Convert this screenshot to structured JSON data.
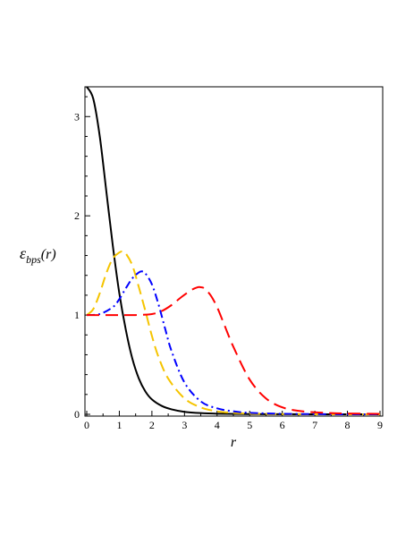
{
  "chart_data": {
    "type": "line",
    "xlabel": "r",
    "ylabel_main": "ε",
    "ylabel_sub": "bps",
    "ylabel_arg": "(r)",
    "xlim": [
      0,
      9
    ],
    "ylim": [
      0,
      3.3
    ],
    "xticks": [
      "0",
      "1",
      "2",
      "3",
      "4",
      "5",
      "6",
      "7",
      "8",
      "9"
    ],
    "yticks": [
      "0",
      "1",
      "2",
      "3"
    ],
    "grid": false,
    "series": [
      {
        "color": "#000000",
        "style": "solid",
        "x": [
          0,
          0.2,
          0.4,
          0.6,
          0.8,
          1.0,
          1.2,
          1.4,
          1.6,
          1.8,
          2.0,
          2.3,
          2.6,
          3.0,
          3.5,
          4.0,
          5.0,
          6.0,
          7.0,
          8.0,
          9.0
        ],
        "y": [
          3.3,
          3.18,
          2.8,
          2.25,
          1.7,
          1.22,
          0.85,
          0.56,
          0.36,
          0.23,
          0.15,
          0.085,
          0.05,
          0.025,
          0.012,
          0.006,
          0.002,
          0.001,
          0.0,
          0.0,
          0.0
        ]
      },
      {
        "color": "#f5c400",
        "style": "dash",
        "x": [
          0,
          0.2,
          0.4,
          0.6,
          0.8,
          1.0,
          1.1,
          1.2,
          1.4,
          1.6,
          1.8,
          2.0,
          2.2,
          2.5,
          3.0,
          3.5,
          4.0,
          4.5,
          5.0,
          6.0,
          7.0,
          8.0,
          9.0
        ],
        "y": [
          1.0,
          1.06,
          1.22,
          1.42,
          1.57,
          1.63,
          1.64,
          1.62,
          1.5,
          1.28,
          1.04,
          0.79,
          0.58,
          0.36,
          0.16,
          0.07,
          0.03,
          0.015,
          0.007,
          0.002,
          0.0,
          0.0,
          0.0
        ]
      },
      {
        "color": "#0000ff",
        "style": "dashdot",
        "x": [
          0,
          0.4,
          0.8,
          1.0,
          1.2,
          1.4,
          1.6,
          1.7,
          1.8,
          2.0,
          2.2,
          2.4,
          2.6,
          3.0,
          3.5,
          4.0,
          4.5,
          5.0,
          6.0,
          7.0,
          8.0,
          9.0
        ],
        "y": [
          1.0,
          1.01,
          1.08,
          1.16,
          1.27,
          1.37,
          1.43,
          1.44,
          1.42,
          1.31,
          1.11,
          0.87,
          0.64,
          0.32,
          0.13,
          0.06,
          0.03,
          0.015,
          0.005,
          0.002,
          0.0,
          0.0
        ]
      },
      {
        "color": "#ff0000",
        "style": "longdash",
        "x": [
          0,
          0.5,
          1.0,
          1.5,
          2.0,
          2.3,
          2.6,
          2.9,
          3.2,
          3.4,
          3.5,
          3.6,
          3.8,
          4.0,
          4.2,
          4.5,
          5.0,
          5.5,
          6.0,
          6.5,
          7.0,
          7.5,
          8.0,
          9.0
        ],
        "y": [
          1.0,
          1.0,
          1.0,
          1.0,
          1.01,
          1.04,
          1.1,
          1.18,
          1.25,
          1.28,
          1.28,
          1.27,
          1.2,
          1.08,
          0.92,
          0.68,
          0.35,
          0.16,
          0.07,
          0.035,
          0.02,
          0.012,
          0.008,
          0.004
        ]
      }
    ]
  }
}
